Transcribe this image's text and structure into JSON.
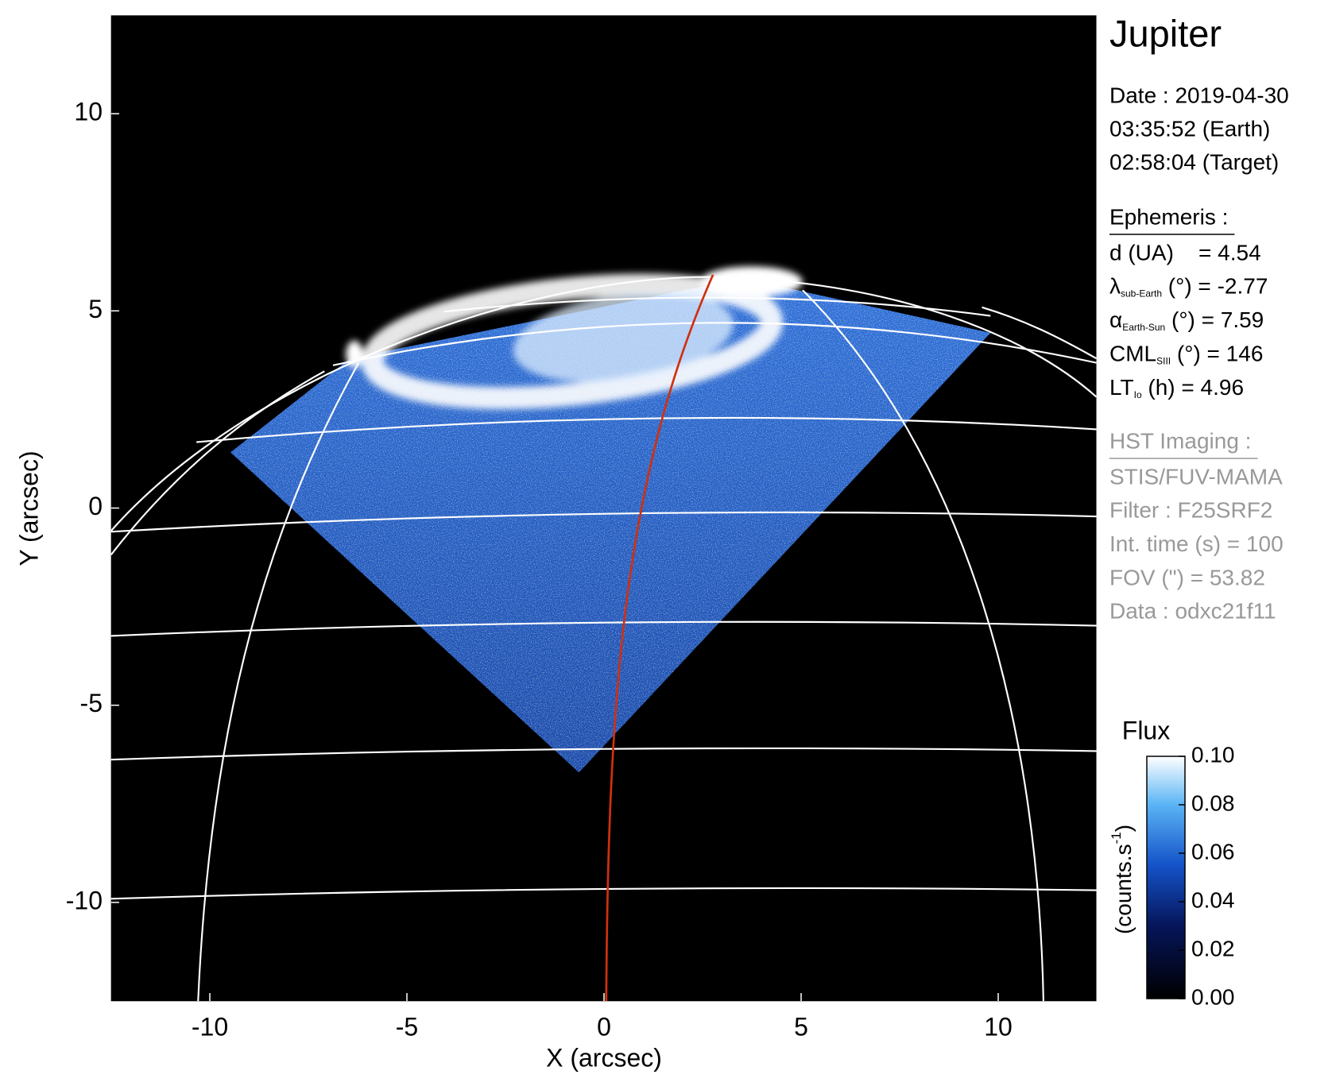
{
  "chart_data": {
    "type": "image",
    "xlabel": "X (arcsec)",
    "ylabel": "Y (arcsec)",
    "xlim": [
      -12.5,
      12.5
    ],
    "ylim": [
      -12.5,
      12.5
    ],
    "xticks": [
      -10,
      -5,
      0,
      5,
      10
    ],
    "yticks": [
      -10,
      -5,
      0,
      5,
      10
    ],
    "colorbar": {
      "title": "Flux",
      "label": [
        "(counts.s",
        "-1",
        ")"
      ],
      "lim": [
        0,
        0.1
      ],
      "ticks": [
        {
          "value": 0,
          "label": "0.00"
        },
        {
          "value": 0.02,
          "label": "0.02"
        },
        {
          "value": 0.04,
          "label": "0.04"
        },
        {
          "value": 0.06,
          "label": "0.06"
        },
        {
          "value": 0.08,
          "label": "0.08"
        },
        {
          "value": 0.1,
          "label": "0.10"
        }
      ]
    }
  },
  "info": {
    "title": "Jupiter",
    "date_lines": [
      "Date : 2019-04-30",
      "03:35:52 (Earth)",
      "02:58:04 (Target)"
    ],
    "ephemeris": {
      "heading": "Ephemeris :",
      "rows": [
        {
          "text": "d (UA)    = 4.54"
        },
        {
          "symbol": "λ",
          "sub": "sub-Earth",
          "rest": " (°) = -2.77"
        },
        {
          "symbol": "α",
          "sub": "Earth-Sun",
          "rest": " (°) = 7.59"
        },
        {
          "symbol": "CML",
          "sub": "SIII",
          "rest": " (°) = 146"
        },
        {
          "symbol": "LT",
          "sub": "Io",
          "rest": " (h) = 4.96"
        }
      ]
    },
    "imaging": {
      "heading": "HST Imaging :",
      "rows": [
        {
          "text": "STIS/FUV-MAMA"
        },
        {
          "text": "Filter : F25SRF2"
        },
        {
          "text": "Int. time (s) = 100"
        },
        {
          "text": "FOV (\") = 53.82"
        },
        {
          "text": "Data : odxc21f11"
        }
      ]
    }
  }
}
